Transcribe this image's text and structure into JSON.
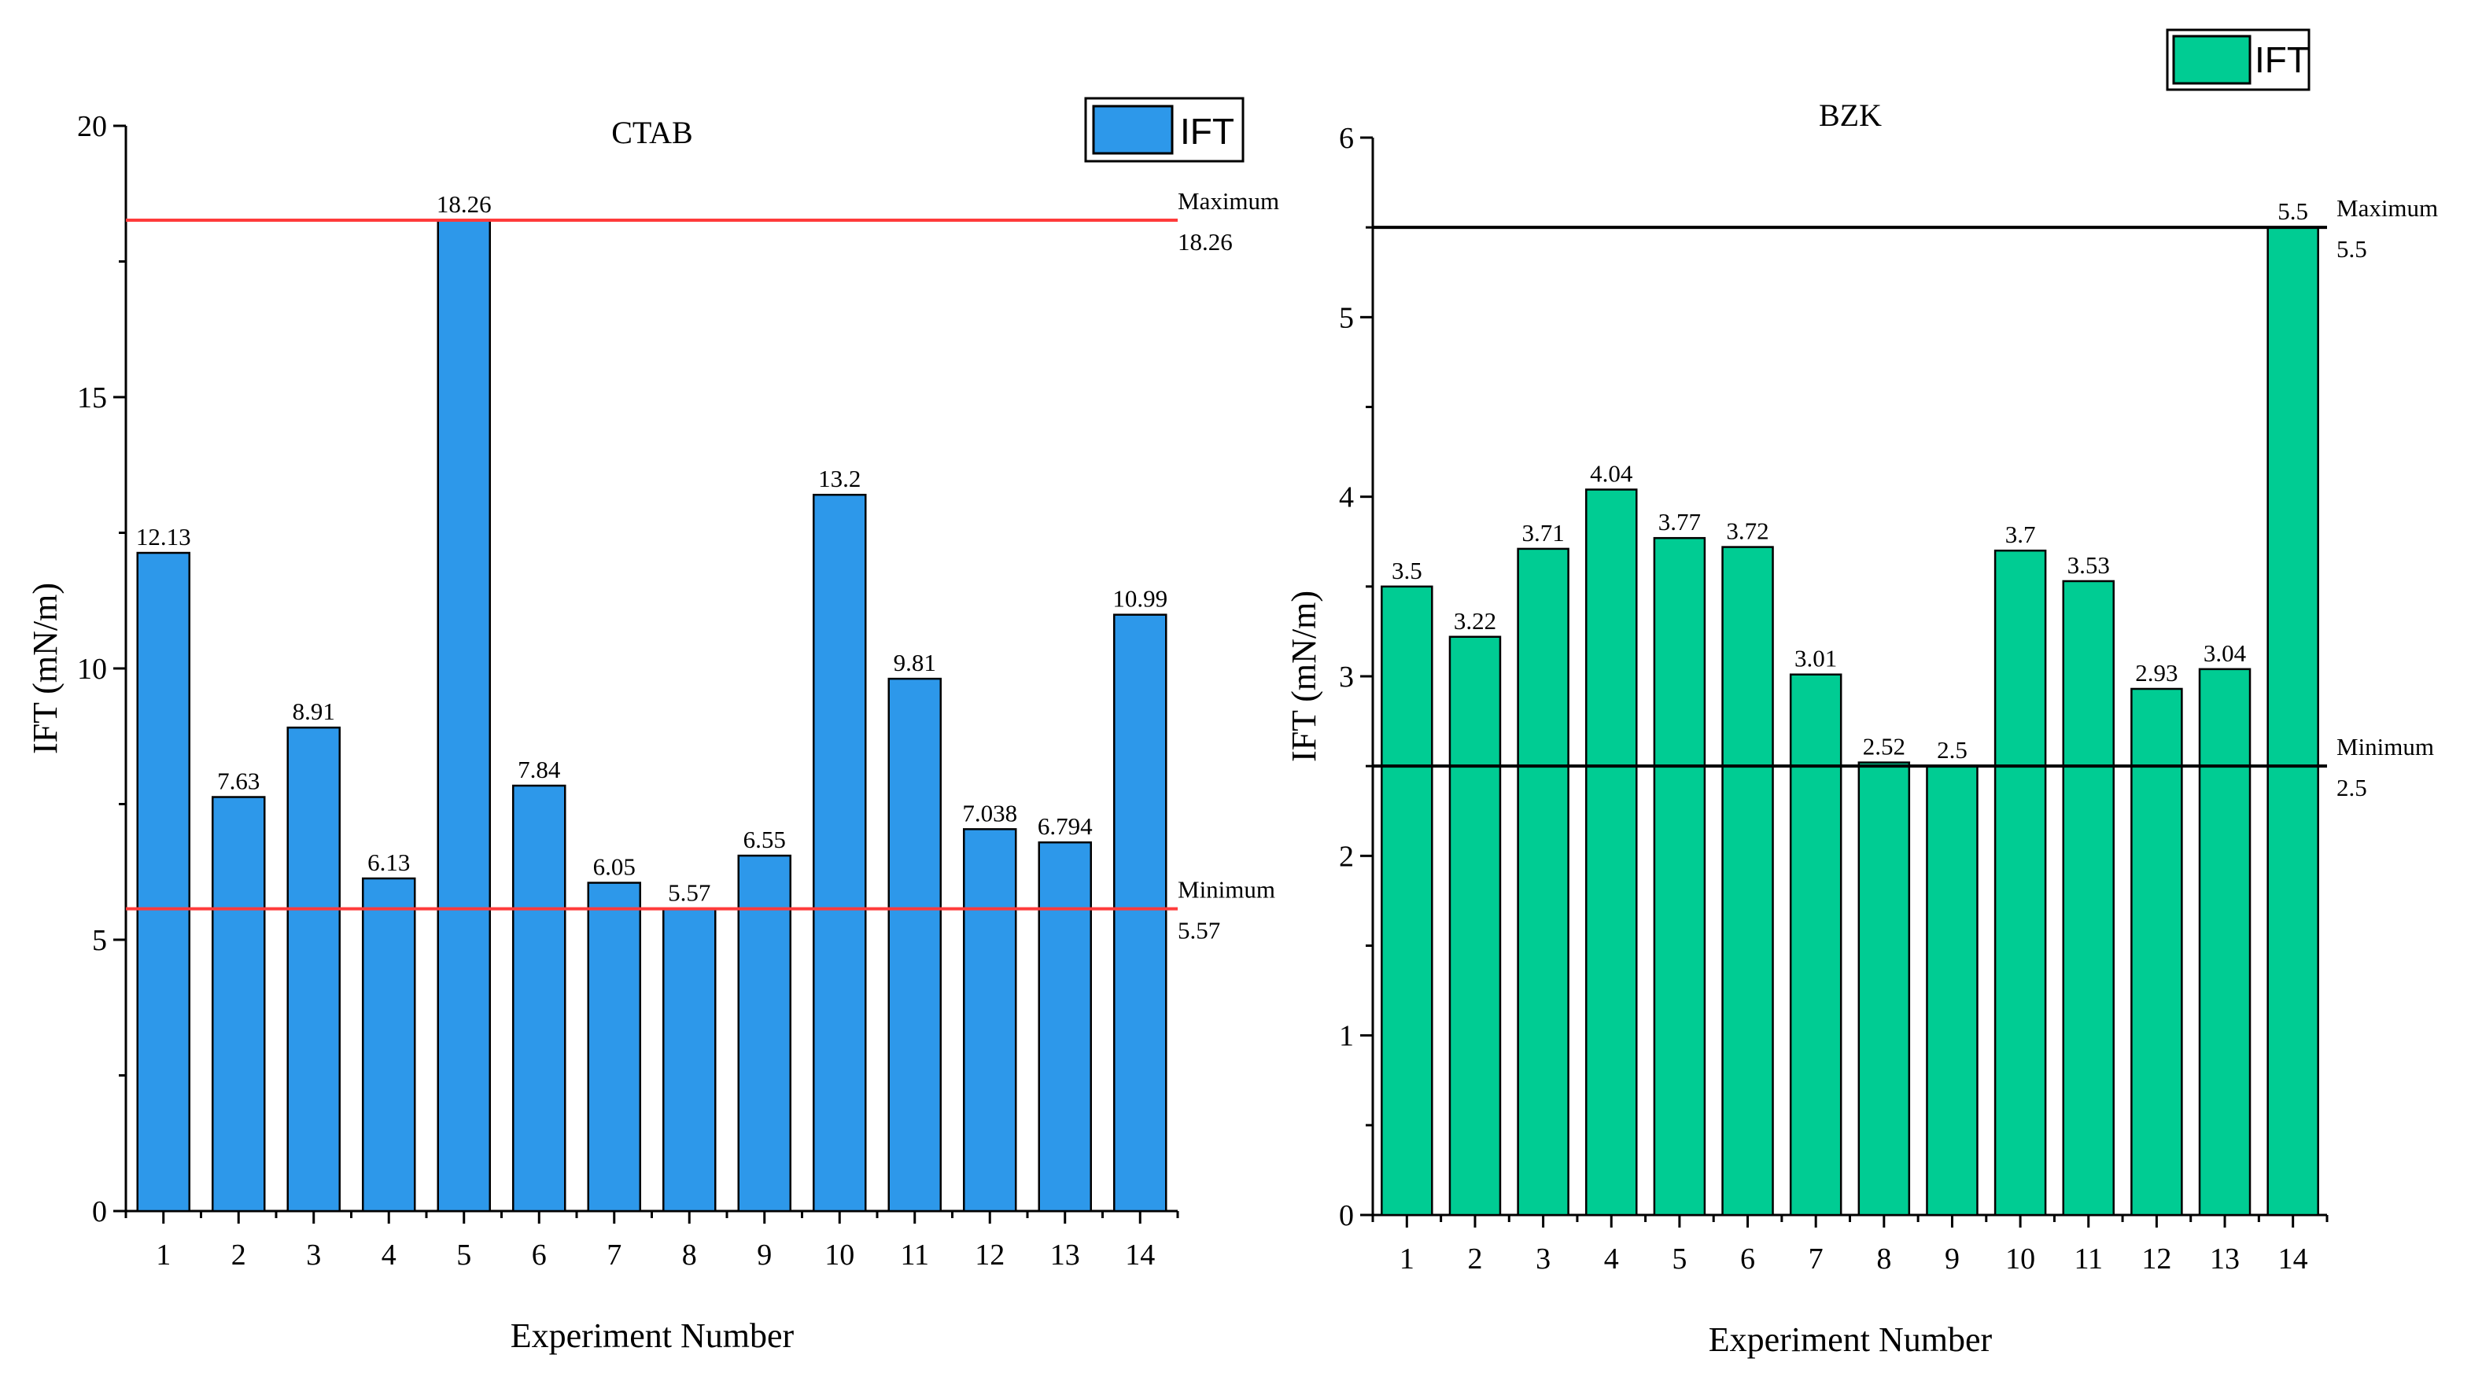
{
  "chart_data": [
    {
      "type": "bar",
      "title": "CTAB",
      "xlabel": "Experiment Number",
      "ylabel": "IFT (mN/m)",
      "categories": [
        "1",
        "2",
        "3",
        "4",
        "5",
        "6",
        "7",
        "8",
        "9",
        "10",
        "11",
        "12",
        "13",
        "14"
      ],
      "series": [
        {
          "name": "IFT",
          "color": "#2d98ea",
          "values": [
            12.13,
            7.63,
            8.91,
            6.13,
            18.26,
            7.84,
            6.05,
            5.57,
            6.55,
            13.2,
            9.81,
            7.038,
            6.794,
            10.99
          ]
        }
      ],
      "value_labels": [
        "12.13",
        "7.63",
        "8.91",
        "6.13",
        "18.26",
        "7.84",
        "6.05",
        "5.57",
        "6.55",
        "13.2",
        "9.81",
        "7.038",
        "6.794",
        "10.99"
      ],
      "ylim": [
        0,
        20
      ],
      "yticks": [
        0,
        5,
        10,
        15,
        20
      ],
      "ytick_labels": [
        "0",
        "5",
        "10",
        "15",
        "20"
      ],
      "reference_lines": [
        {
          "name": "Maximum",
          "value": 18.26,
          "label": "Maximum",
          "value_label": "18.26",
          "color": "#ff3b3b"
        },
        {
          "name": "Minimum",
          "value": 5.57,
          "label": "Minimum",
          "value_label": "5.57",
          "color": "#ff3b3b"
        }
      ],
      "legend": {
        "label": "IFT",
        "position": "top-right"
      }
    },
    {
      "type": "bar",
      "title": "BZK",
      "xlabel": "Experiment Number",
      "ylabel": "IFT (mN/m)",
      "categories": [
        "1",
        "2",
        "3",
        "4",
        "5",
        "6",
        "7",
        "8",
        "9",
        "10",
        "11",
        "12",
        "13",
        "14"
      ],
      "series": [
        {
          "name": "IFT",
          "color": "#00cc93",
          "values": [
            3.5,
            3.22,
            3.71,
            4.04,
            3.77,
            3.72,
            3.01,
            2.52,
            2.5,
            3.7,
            3.53,
            2.93,
            3.04,
            5.5
          ]
        }
      ],
      "value_labels": [
        "3.5",
        "3.22",
        "3.71",
        "4.04",
        "3.77",
        "3.72",
        "3.01",
        "2.52",
        "2.5",
        "3.7",
        "3.53",
        "2.93",
        "3.04",
        "5.5"
      ],
      "ylim": [
        0,
        6
      ],
      "yticks": [
        0,
        1,
        2,
        3,
        4,
        5,
        6
      ],
      "ytick_labels": [
        "0",
        "1",
        "2",
        "3",
        "4",
        "5",
        "6"
      ],
      "reference_lines": [
        {
          "name": "Maximum",
          "value": 5.5,
          "label": "Maximum",
          "value_label": "5.5",
          "color": "#000000"
        },
        {
          "name": "Minimum",
          "value": 2.5,
          "label": "Minimum",
          "value_label": "2.5",
          "color": "#000000"
        }
      ],
      "legend": {
        "label": "IFT",
        "position": "top-right"
      }
    }
  ]
}
